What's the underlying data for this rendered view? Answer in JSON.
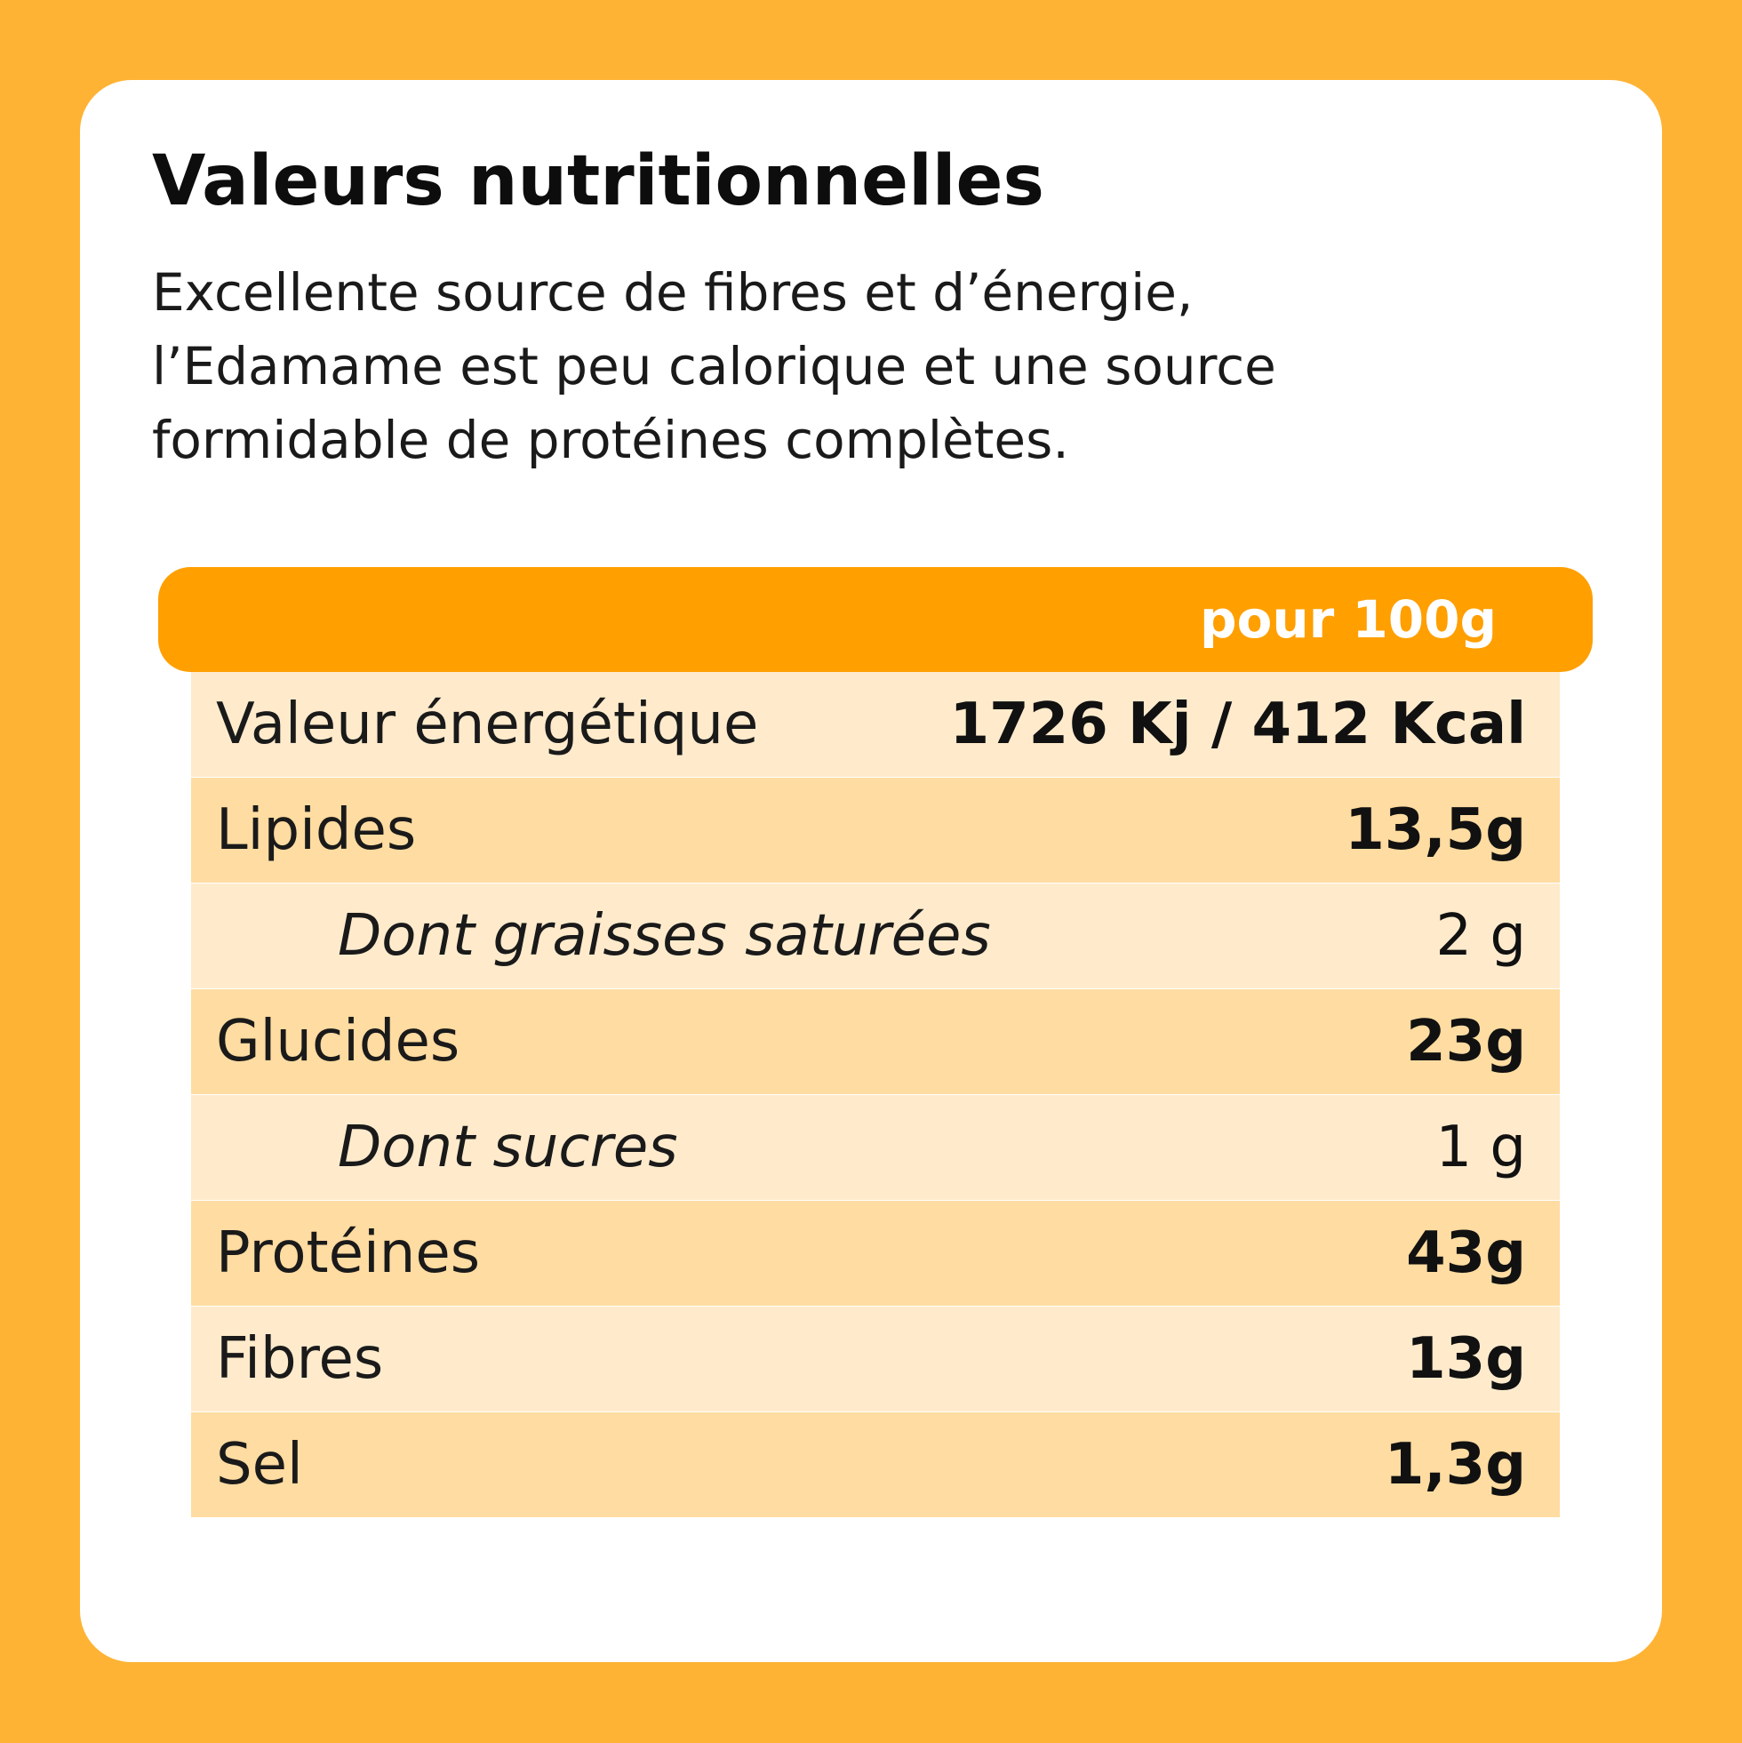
{
  "title": "Valeurs nutritionnelles",
  "description": {
    "line1": "Excellente source de fibres et d’énergie,",
    "line2": "l’Edamame est peu calorique et une source",
    "line3": "formidable de protéines complètes."
  },
  "table": {
    "header": "pour 100g",
    "rows": [
      {
        "label": "Valeur énergétique",
        "value": "1726 Kj / 412 Kcal"
      },
      {
        "label": "Lipides",
        "value": "13,5g"
      },
      {
        "label": "Dont graisses saturées",
        "value": "2 g"
      },
      {
        "label": "Glucides",
        "value": "23g"
      },
      {
        "label": "Dont sucres",
        "value": "1 g"
      },
      {
        "label": "Protéines",
        "value": "43g"
      },
      {
        "label": "Fibres",
        "value": "13g"
      },
      {
        "label": "Sel",
        "value": "1,3g"
      }
    ]
  },
  "colors": {
    "background": "#FEB334",
    "header": "#FF9F00",
    "row_light": "#FFEBCC",
    "row_dark": "#FFDCA1"
  }
}
